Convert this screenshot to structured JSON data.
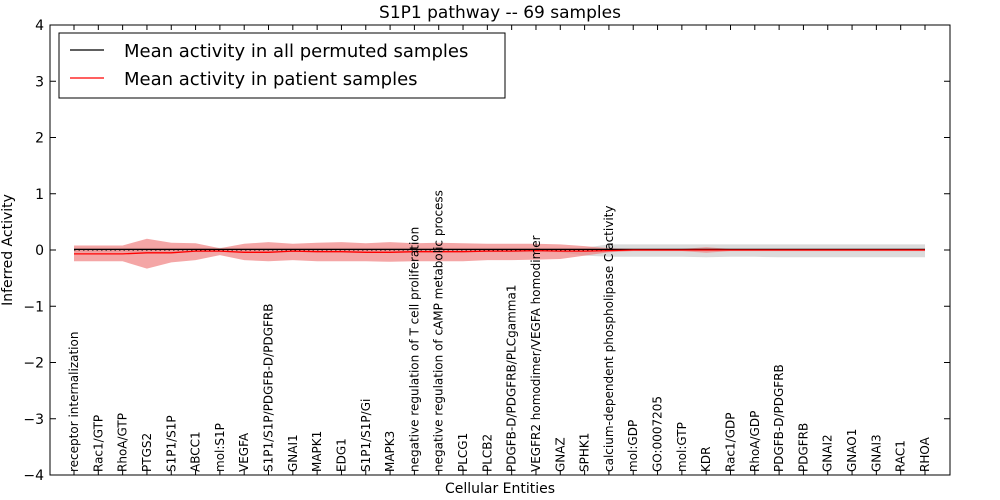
{
  "chart_data": {
    "type": "line",
    "title": "S1P1 pathway -- 69 samples",
    "xlabel": "Cellular Entities",
    "ylabel": "Inferred Activity",
    "ylim": [
      -4,
      4
    ],
    "yticks": [
      "−4",
      "−3",
      "−2",
      "−1",
      "0",
      "1",
      "2",
      "3",
      "4"
    ],
    "grid": false,
    "legend_position": "top-left",
    "categories": [
      "receptor internalization",
      "Rac1/GTP",
      "RhoA/GTP",
      "PTGS2",
      "S1P1/S1P",
      "ABCC1",
      "mol:S1P",
      "VEGFA",
      "S1P1/S1P/PDGFB-D/PDGFRB",
      "GNAI1",
      "MAPK1",
      "EDG1",
      "S1P1/S1P/Gi",
      "MAPK3",
      "negative regulation of T cell proliferation",
      "negative regulation of cAMP metabolic process",
      "PLCG1",
      "PLCB2",
      "PDGFB-D/PDGFRB/PLCgamma1",
      "VEGFR2 homodimer/VEGFA homodimer",
      "GNAZ",
      "SPHK1",
      "calcium-dependent phospholipase C activity",
      "mol:GDP",
      "GO:0007205",
      "mol:GTP",
      "KDR",
      "Rac1/GDP",
      "RhoA/GDP",
      "PDGFB-D/PDGFRB",
      "PDGFRB",
      "GNAI2",
      "GNAO1",
      "GNAI3",
      "RAC1",
      "RHOA"
    ],
    "series": [
      {
        "name": "Mean activity in all permuted samples",
        "color": "#000000",
        "values": [
          0.01,
          0.01,
          0.01,
          0.01,
          0.01,
          0.01,
          0.01,
          0.01,
          0.01,
          0.01,
          0.01,
          0.01,
          0.01,
          0.01,
          0.01,
          0.01,
          0.01,
          0.01,
          0.01,
          0.01,
          0.01,
          0.01,
          0.01,
          0.01,
          0.01,
          0.01,
          0.01,
          0.01,
          0.01,
          0.01,
          0.01,
          0.01,
          0.01,
          0.01,
          0.01,
          0.01
        ],
        "band_upper": [
          0.04,
          0.04,
          0.04,
          0.04,
          0.04,
          0.04,
          0.04,
          0.04,
          0.04,
          0.04,
          0.04,
          0.04,
          0.04,
          0.04,
          0.04,
          0.04,
          0.04,
          0.04,
          0.04,
          0.04,
          0.04,
          0.04,
          0.1,
          0.1,
          0.1,
          0.1,
          0.1,
          0.1,
          0.1,
          0.1,
          0.1,
          0.1,
          0.1,
          0.1,
          0.1,
          0.1
        ],
        "band_lower": [
          -0.04,
          -0.04,
          -0.04,
          -0.04,
          -0.04,
          -0.04,
          -0.04,
          -0.04,
          -0.04,
          -0.04,
          -0.04,
          -0.04,
          -0.04,
          -0.04,
          -0.04,
          -0.04,
          -0.04,
          -0.04,
          -0.04,
          -0.04,
          -0.04,
          -0.1,
          -0.12,
          -0.12,
          -0.12,
          -0.12,
          -0.13,
          -0.12,
          -0.12,
          -0.13,
          -0.13,
          -0.13,
          -0.13,
          -0.13,
          -0.13,
          -0.13
        ],
        "band_color": "#cccccc"
      },
      {
        "name": "Mean activity in patient samples",
        "color": "#ff0000",
        "values": [
          -0.07,
          -0.07,
          -0.07,
          -0.05,
          -0.05,
          -0.02,
          -0.02,
          -0.04,
          -0.04,
          -0.02,
          -0.03,
          -0.03,
          -0.04,
          -0.04,
          -0.03,
          -0.03,
          -0.03,
          -0.02,
          -0.02,
          -0.01,
          -0.02,
          -0.02,
          -0.01,
          0.0,
          0.0,
          0.0,
          0.0,
          0.0,
          0.0,
          0.0,
          0.0,
          0.0,
          0.0,
          0.0,
          0.0,
          0.0
        ],
        "band_upper": [
          0.08,
          0.08,
          0.08,
          0.2,
          0.13,
          0.12,
          0.03,
          0.11,
          0.14,
          0.11,
          0.13,
          0.14,
          0.12,
          0.14,
          0.12,
          0.13,
          0.12,
          0.11,
          0.11,
          0.11,
          0.1,
          0.07,
          0.03,
          0.02,
          0.02,
          0.02,
          0.05,
          0.02,
          0.02,
          0.02,
          0.02,
          0.02,
          0.02,
          0.02,
          0.02,
          0.02
        ],
        "band_lower": [
          -0.2,
          -0.2,
          -0.2,
          -0.33,
          -0.22,
          -0.18,
          -0.09,
          -0.18,
          -0.2,
          -0.18,
          -0.2,
          -0.2,
          -0.2,
          -0.21,
          -0.2,
          -0.2,
          -0.2,
          -0.18,
          -0.18,
          -0.17,
          -0.16,
          -0.1,
          -0.04,
          -0.02,
          -0.02,
          -0.02,
          -0.05,
          -0.02,
          -0.02,
          -0.02,
          -0.02,
          -0.02,
          -0.02,
          -0.02,
          -0.02,
          -0.02
        ],
        "band_color": "#f08080"
      }
    ],
    "reference_line": {
      "y": 0.0,
      "style": "dotted",
      "color": "#000000"
    }
  }
}
